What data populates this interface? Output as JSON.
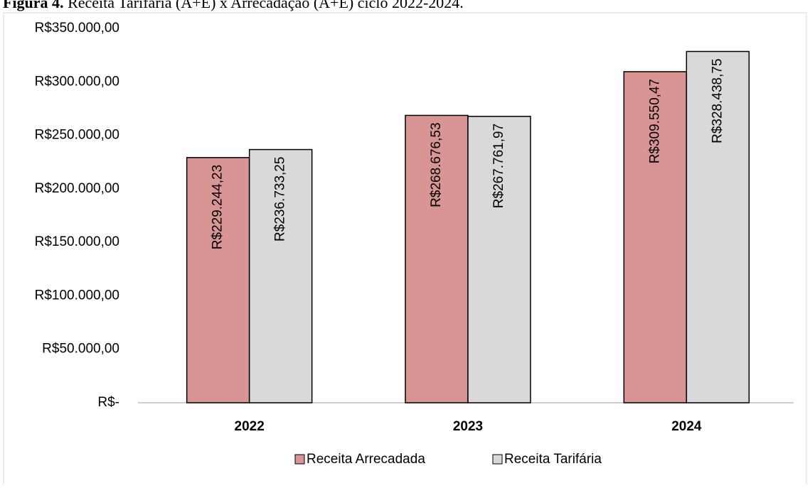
{
  "chart_data": {
    "type": "bar",
    "title_prefix": "Figura 4.",
    "title": "Receita Tarifária (A+E) x Arrecadação (A+E) ciclo 2022-2024.",
    "categories": [
      "2022",
      "2023",
      "2024"
    ],
    "series": [
      {
        "name": "Receita Arrecadada",
        "color": "#d99594",
        "values": [
          229244.23,
          268676.53,
          309550.47
        ],
        "value_labels": [
          "R$229.244,23",
          "R$268.676,53",
          "R$309.550,47"
        ]
      },
      {
        "name": "Receita Tarifária",
        "color": "#d9d9d9",
        "values": [
          236733.25,
          267761.97,
          328438.75
        ],
        "value_labels": [
          "R$236.733,25",
          "R$267.761,97",
          "R$328.438,75"
        ]
      }
    ],
    "ylim": [
      0,
      350000
    ],
    "yticks": [
      {
        "value": 0,
        "label": "R$-"
      },
      {
        "value": 50000,
        "label": "R$50.000,00"
      },
      {
        "value": 100000,
        "label": "R$100.000,00"
      },
      {
        "value": 150000,
        "label": "R$150.000,00"
      },
      {
        "value": 200000,
        "label": "R$200.000,00"
      },
      {
        "value": 250000,
        "label": "R$250.000,00"
      },
      {
        "value": 300000,
        "label": "R$300.000,00"
      },
      {
        "value": 350000,
        "label": "R$350.000,00"
      }
    ],
    "grid": false,
    "legend": "bottom"
  }
}
